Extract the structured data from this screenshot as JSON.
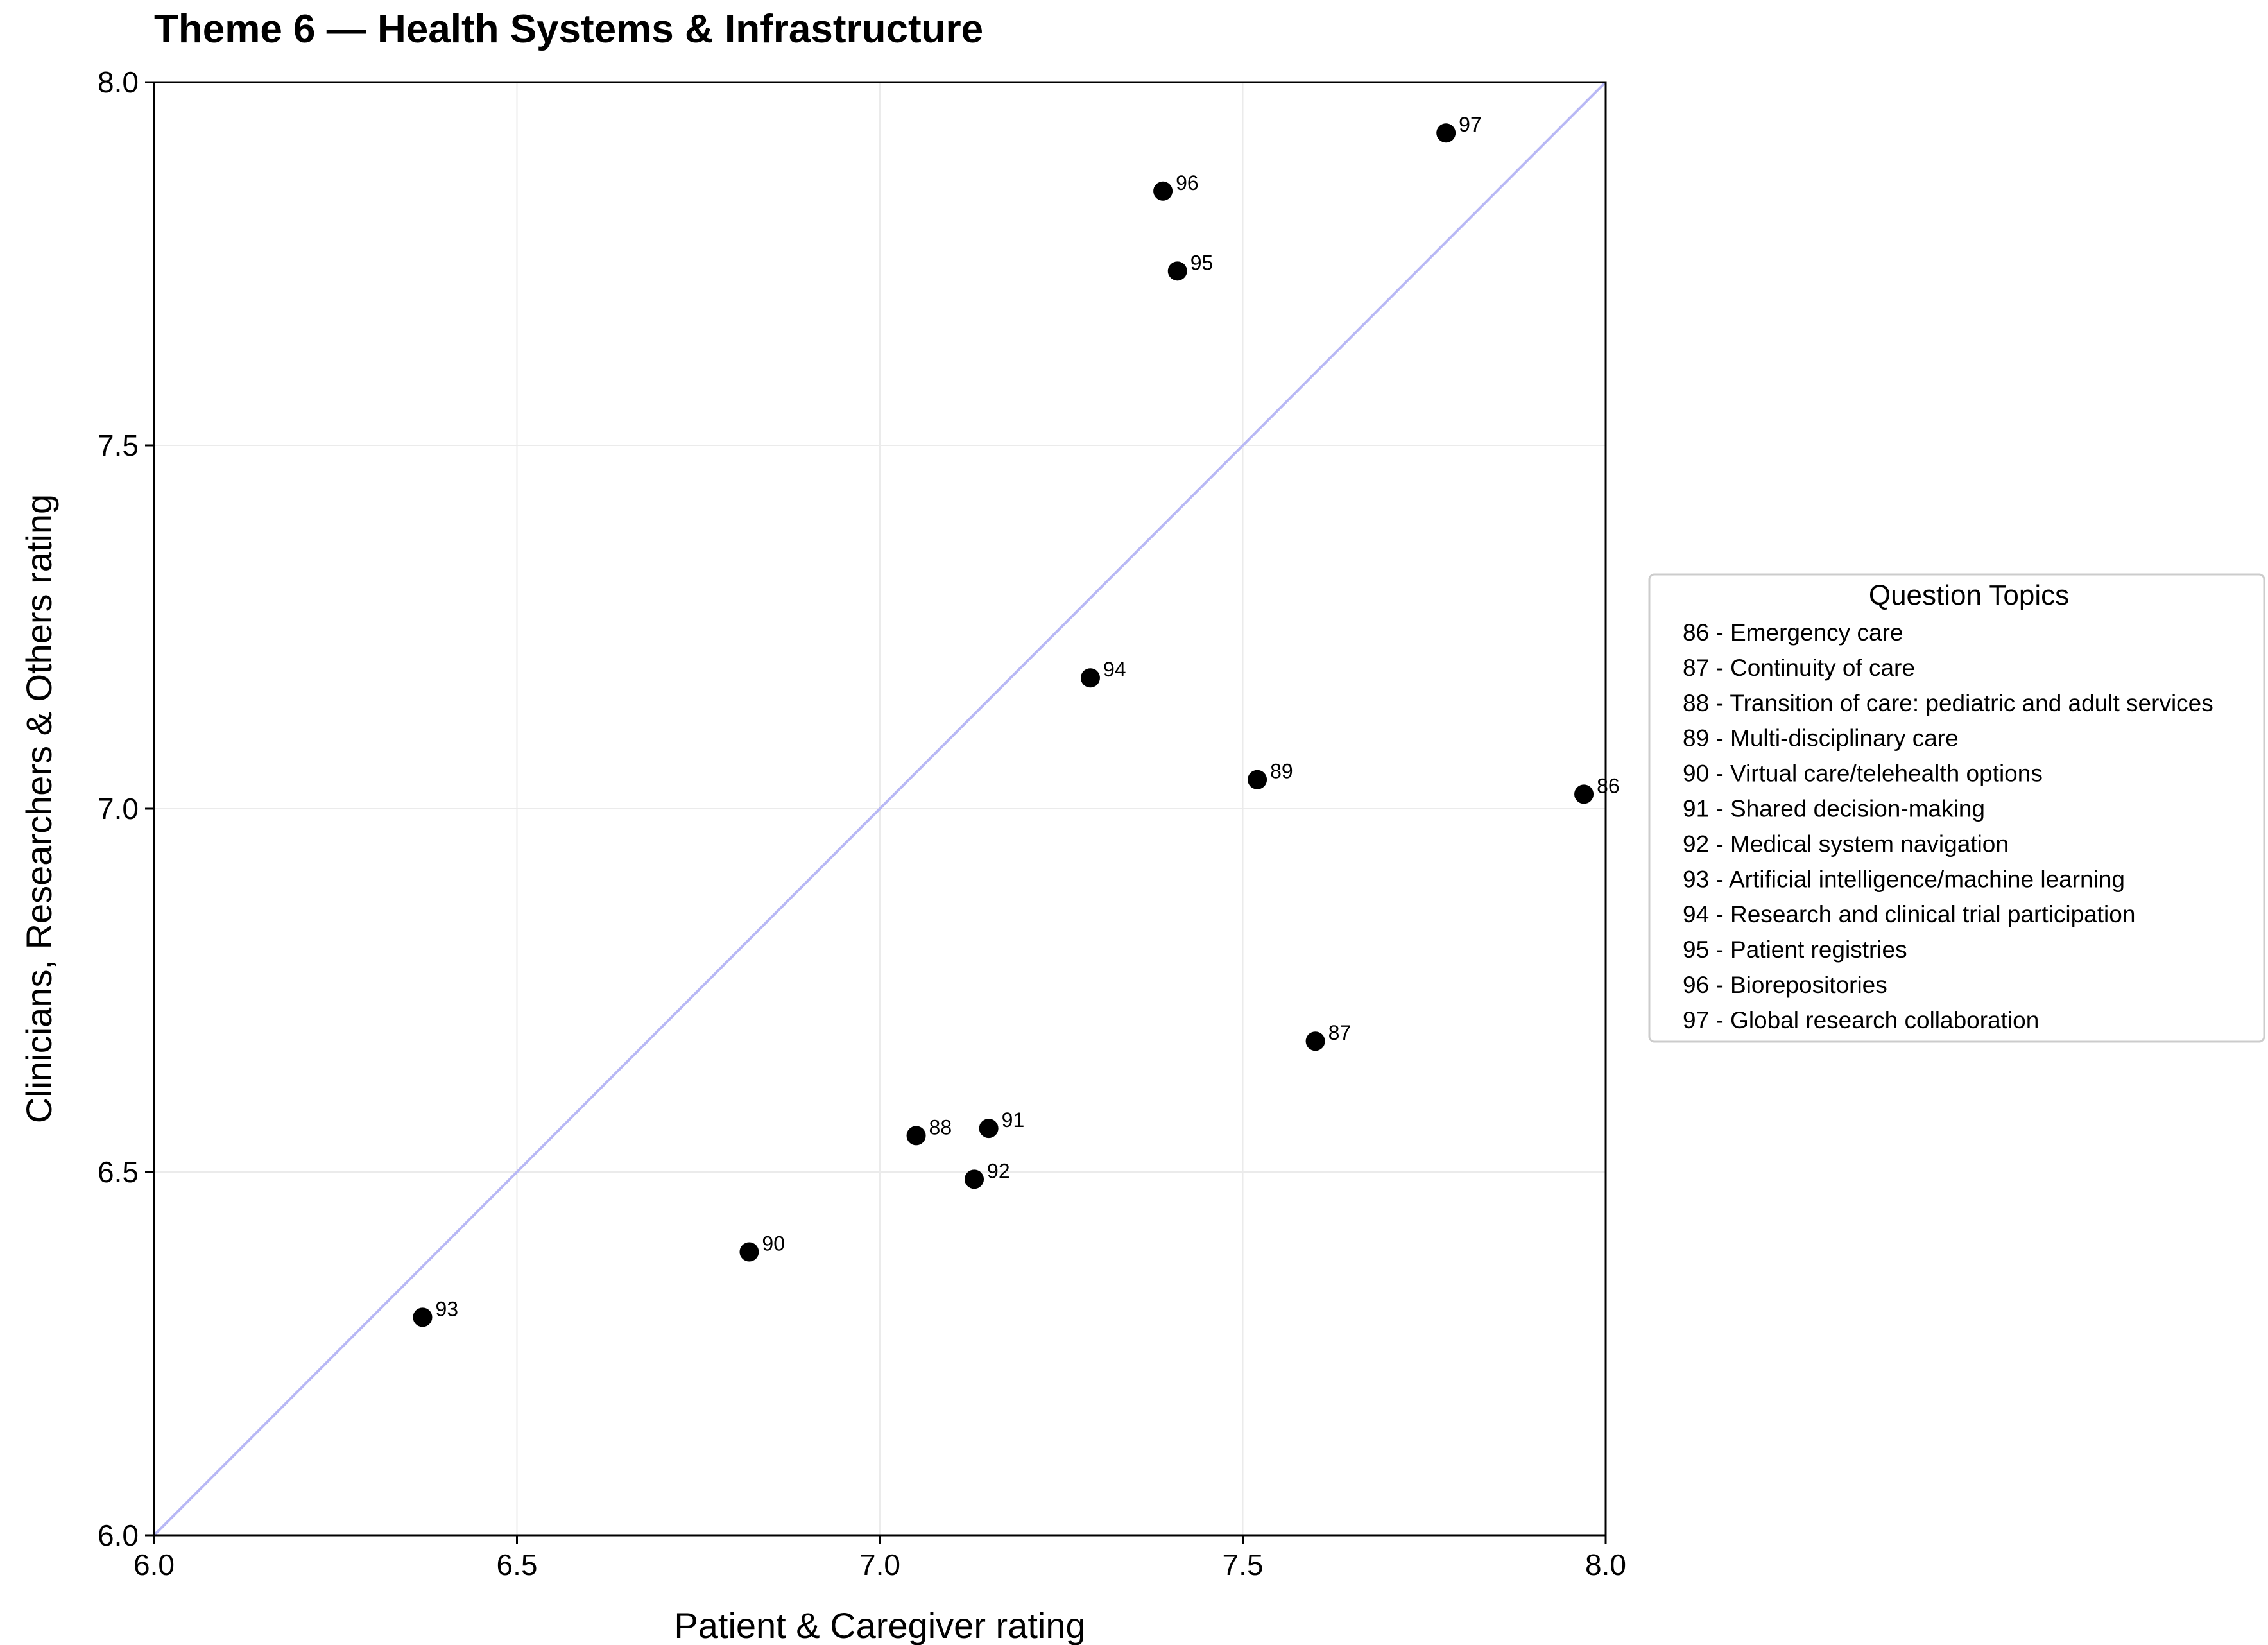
{
  "chart_data": {
    "type": "scatter",
    "title": "Theme 6 — Health Systems & Infrastructure",
    "xlabel": "Patient & Caregiver rating",
    "ylabel": "Clinicians, Researchers & Others rating",
    "xlim": [
      6.0,
      8.0
    ],
    "ylim": [
      6.0,
      8.0
    ],
    "xticks": [
      "6.0",
      "6.5",
      "7.0",
      "7.5",
      "8.0"
    ],
    "yticks": [
      "6.0",
      "6.5",
      "7.0",
      "7.5",
      "8.0"
    ],
    "grid": true,
    "reference_line": "y = x",
    "point_color": "#000000",
    "reference_line_color": "#b8b8f5",
    "points": [
      {
        "label": "86",
        "x": 7.97,
        "y": 7.02
      },
      {
        "label": "87",
        "x": 7.6,
        "y": 6.68
      },
      {
        "label": "88",
        "x": 7.05,
        "y": 6.55
      },
      {
        "label": "89",
        "x": 7.52,
        "y": 7.04
      },
      {
        "label": "90",
        "x": 6.82,
        "y": 6.39
      },
      {
        "label": "91",
        "x": 7.15,
        "y": 6.56
      },
      {
        "label": "92",
        "x": 7.13,
        "y": 6.49
      },
      {
        "label": "93",
        "x": 6.37,
        "y": 6.3
      },
      {
        "label": "94",
        "x": 7.29,
        "y": 7.18
      },
      {
        "label": "95",
        "x": 7.41,
        "y": 7.74
      },
      {
        "label": "96",
        "x": 7.39,
        "y": 7.85
      },
      {
        "label": "97",
        "x": 7.78,
        "y": 7.93
      }
    ],
    "legend": {
      "title": "Question Topics",
      "placement": "right",
      "items": [
        "86 - Emergency care",
        "87 - Continuity of care",
        "88 - Transition of care: pediatric and adult services",
        "89 - Multi-disciplinary care",
        "90 - Virtual care/telehealth options",
        "91 - Shared decision-making",
        "92 - Medical system navigation",
        "93 - Artificial intelligence/machine learning",
        "94 - Research and clinical trial participation",
        "95 - Patient registries",
        "96 - Biorepositories",
        "97 - Global research collaboration"
      ]
    }
  }
}
